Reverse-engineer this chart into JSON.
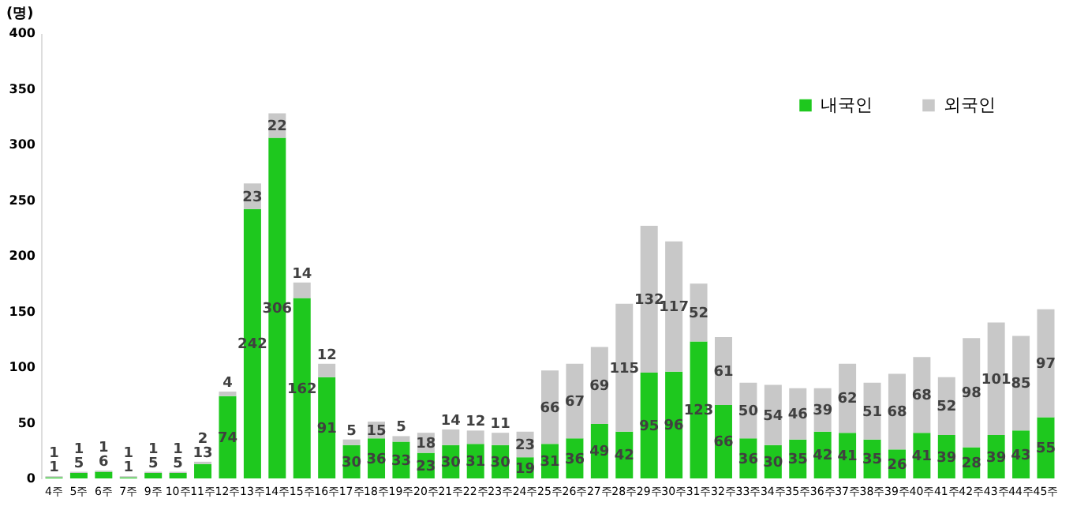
{
  "chart_data": {
    "type": "bar",
    "stacked": true,
    "ylabel": "(명)",
    "categories": [
      "4주",
      "5주",
      "6주",
      "7주",
      "9주",
      "10주",
      "11주",
      "12주",
      "13주",
      "14주",
      "15주",
      "16주",
      "17주",
      "18주",
      "19주",
      "20주",
      "21주",
      "22주",
      "23주",
      "24주",
      "25주",
      "26주",
      "27주",
      "28주",
      "29주",
      "30주",
      "31주",
      "32주",
      "33주",
      "34주",
      "35주",
      "36주",
      "37주",
      "38주",
      "39주",
      "40주",
      "41주",
      "42주",
      "43주",
      "44주",
      "45주"
    ],
    "series": [
      {
        "name": "내국인",
        "color": "#1ec81e",
        "values": [
          1,
          5,
          6,
          1,
          5,
          5,
          13,
          74,
          242,
          306,
          162,
          91,
          30,
          36,
          33,
          23,
          30,
          31,
          30,
          19,
          31,
          36,
          49,
          42,
          95,
          96,
          123,
          66,
          36,
          30,
          35,
          42,
          41,
          35,
          26,
          41,
          39,
          28,
          39,
          43,
          55
        ]
      },
      {
        "name": "외국인",
        "color": "#c8c8c8",
        "values": [
          1,
          1,
          1,
          1,
          1,
          1,
          2,
          4,
          23,
          22,
          14,
          12,
          5,
          15,
          5,
          18,
          14,
          12,
          11,
          23,
          66,
          67,
          69,
          115,
          132,
          117,
          52,
          61,
          50,
          54,
          46,
          39,
          62,
          51,
          68,
          68,
          52,
          98,
          101,
          85,
          97
        ]
      }
    ],
    "ylim": [
      0,
      400
    ],
    "yticks": [
      0,
      50,
      100,
      150,
      200,
      250,
      300,
      350,
      400
    ],
    "grid": false,
    "legend": "top right",
    "data_labels": true
  }
}
